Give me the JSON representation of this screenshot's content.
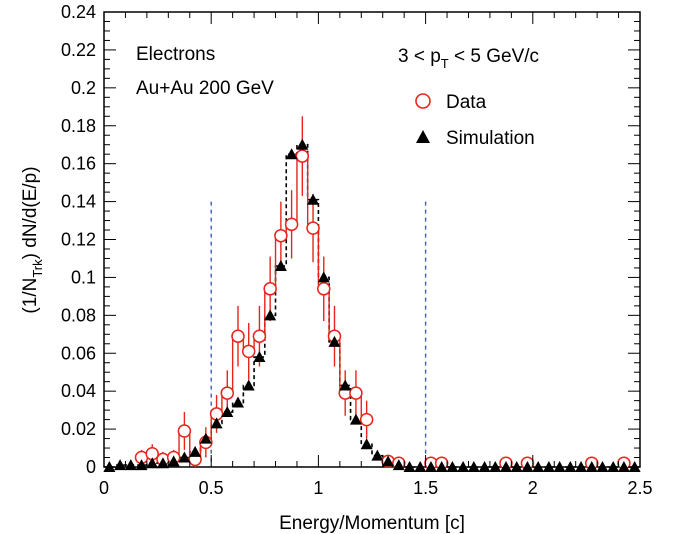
{
  "chart_data": {
    "type": "scatter",
    "xlabel": "Energy/Momentum [c]",
    "ylabel": {
      "prefix": "(1/N",
      "sub": "Trk",
      "suffix": ") dN/d(E/p)"
    },
    "xlim": [
      0,
      2.5
    ],
    "ylim": [
      0,
      0.24
    ],
    "x_ticks": [
      "0",
      "0.5",
      "1",
      "1.5",
      "2",
      "2.5"
    ],
    "y_ticks": [
      "0",
      "0.02",
      "0.04",
      "0.06",
      "0.08",
      "0.1",
      "0.12",
      "0.14",
      "0.16",
      "0.18",
      "0.2",
      "0.22",
      "0.24"
    ],
    "annotations": {
      "line1": "Electrons",
      "line2": "Au+Au 200 GeV",
      "cut": {
        "prefix": "3 < p",
        "sub": "T",
        "suffix": " < 5 GeV/c"
      }
    },
    "cut_lines": [
      0.5,
      1.5
    ],
    "legend": {
      "placement": "top-right",
      "data_label": "Data",
      "sim_label": "Simulation"
    },
    "series": [
      {
        "name": "Data",
        "marker": "open-circle",
        "color": "#e8241c",
        "points": [
          {
            "x": 0.175,
            "y": 0.005,
            "err": 0.004
          },
          {
            "x": 0.225,
            "y": 0.007,
            "err": 0.005
          },
          {
            "x": 0.275,
            "y": 0.004,
            "err": 0.004
          },
          {
            "x": 0.325,
            "y": 0.005,
            "err": 0.004
          },
          {
            "x": 0.375,
            "y": 0.019,
            "err": 0.01
          },
          {
            "x": 0.425,
            "y": 0.004,
            "err": 0.005
          },
          {
            "x": 0.475,
            "y": 0.013,
            "err": 0.008
          },
          {
            "x": 0.525,
            "y": 0.028,
            "err": 0.01
          },
          {
            "x": 0.575,
            "y": 0.039,
            "err": 0.012
          },
          {
            "x": 0.625,
            "y": 0.069,
            "err": 0.016
          },
          {
            "x": 0.675,
            "y": 0.061,
            "err": 0.015
          },
          {
            "x": 0.725,
            "y": 0.069,
            "err": 0.016
          },
          {
            "x": 0.775,
            "y": 0.094,
            "err": 0.017
          },
          {
            "x": 0.825,
            "y": 0.122,
            "err": 0.018
          },
          {
            "x": 0.875,
            "y": 0.128,
            "err": 0.018
          },
          {
            "x": 0.925,
            "y": 0.164,
            "err": 0.021
          },
          {
            "x": 0.975,
            "y": 0.126,
            "err": 0.018
          },
          {
            "x": 1.025,
            "y": 0.094,
            "err": 0.017
          },
          {
            "x": 1.075,
            "y": 0.069,
            "err": 0.016
          },
          {
            "x": 1.125,
            "y": 0.039,
            "err": 0.012
          },
          {
            "x": 1.175,
            "y": 0.039,
            "err": 0.012
          },
          {
            "x": 1.225,
            "y": 0.025,
            "err": 0.01
          },
          {
            "x": 1.325,
            "y": 0.003,
            "err": 0.003
          },
          {
            "x": 1.375,
            "y": 0.002,
            "err": 0.002
          },
          {
            "x": 1.525,
            "y": 0.002,
            "err": 0.002
          },
          {
            "x": 1.575,
            "y": 0.002,
            "err": 0.002
          },
          {
            "x": 1.875,
            "y": 0.002,
            "err": 0.002
          },
          {
            "x": 1.975,
            "y": 0.002,
            "err": 0.002
          },
          {
            "x": 2.275,
            "y": 0.002,
            "err": 0.002
          },
          {
            "x": 2.425,
            "y": 0.002,
            "err": 0.002
          }
        ]
      },
      {
        "name": "Simulation",
        "marker": "filled-triangle",
        "color": "#000000",
        "points": [
          {
            "x": 0.025,
            "y": 0.0
          },
          {
            "x": 0.075,
            "y": 0.001
          },
          {
            "x": 0.125,
            "y": 0.001
          },
          {
            "x": 0.175,
            "y": 0.001
          },
          {
            "x": 0.225,
            "y": 0.002
          },
          {
            "x": 0.275,
            "y": 0.002
          },
          {
            "x": 0.325,
            "y": 0.003
          },
          {
            "x": 0.375,
            "y": 0.005
          },
          {
            "x": 0.425,
            "y": 0.008
          },
          {
            "x": 0.475,
            "y": 0.015
          },
          {
            "x": 0.525,
            "y": 0.023
          },
          {
            "x": 0.575,
            "y": 0.029
          },
          {
            "x": 0.625,
            "y": 0.034
          },
          {
            "x": 0.675,
            "y": 0.043
          },
          {
            "x": 0.725,
            "y": 0.058
          },
          {
            "x": 0.775,
            "y": 0.08
          },
          {
            "x": 0.825,
            "y": 0.106
          },
          {
            "x": 0.875,
            "y": 0.165
          },
          {
            "x": 0.925,
            "y": 0.17
          },
          {
            "x": 0.975,
            "y": 0.141
          },
          {
            "x": 1.025,
            "y": 0.1
          },
          {
            "x": 1.075,
            "y": 0.066
          },
          {
            "x": 1.125,
            "y": 0.043
          },
          {
            "x": 1.175,
            "y": 0.025
          },
          {
            "x": 1.225,
            "y": 0.012
          },
          {
            "x": 1.275,
            "y": 0.006
          },
          {
            "x": 1.325,
            "y": 0.003
          },
          {
            "x": 1.375,
            "y": 0.001
          },
          {
            "x": 1.425,
            "y": 0.0
          },
          {
            "x": 1.475,
            "y": 0.0
          },
          {
            "x": 1.525,
            "y": 0.0
          },
          {
            "x": 1.575,
            "y": 0.0
          },
          {
            "x": 1.625,
            "y": 0.0
          },
          {
            "x": 1.675,
            "y": 0.0
          },
          {
            "x": 1.725,
            "y": 0.0
          },
          {
            "x": 1.775,
            "y": 0.0
          },
          {
            "x": 1.825,
            "y": 0.0
          },
          {
            "x": 1.875,
            "y": 0.0
          },
          {
            "x": 1.925,
            "y": 0.0
          },
          {
            "x": 1.975,
            "y": 0.0
          },
          {
            "x": 2.025,
            "y": 0.0
          },
          {
            "x": 2.075,
            "y": 0.0
          },
          {
            "x": 2.125,
            "y": 0.0
          },
          {
            "x": 2.175,
            "y": 0.0
          },
          {
            "x": 2.225,
            "y": 0.0
          },
          {
            "x": 2.275,
            "y": 0.0
          },
          {
            "x": 2.325,
            "y": 0.0
          },
          {
            "x": 2.375,
            "y": 0.0
          },
          {
            "x": 2.425,
            "y": 0.0
          },
          {
            "x": 2.475,
            "y": 0.0
          }
        ]
      }
    ]
  }
}
